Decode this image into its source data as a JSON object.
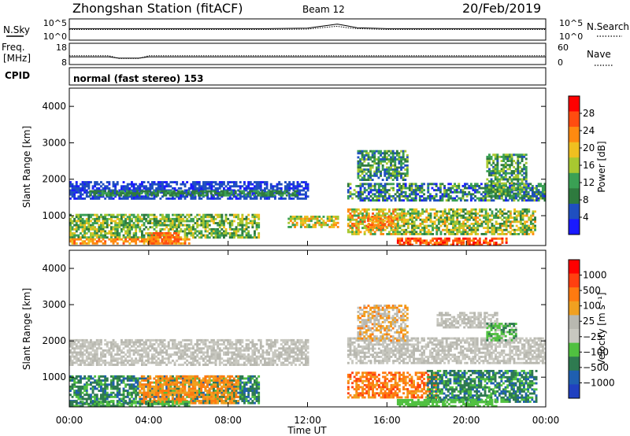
{
  "header": {
    "station": "Zhongshan Station (fitACF)",
    "beam": "Beam 12",
    "date": "20/Feb/2019"
  },
  "noise_panel": {
    "left_label": "N.Sky",
    "right_label": "N.Search",
    "ticks_left": [
      "10^5",
      "10^0"
    ],
    "ticks_right": [
      "10^5",
      "10^0"
    ]
  },
  "freq_panel": {
    "left_label_1": "Freq.",
    "left_label_2": "[MHz]",
    "right_label": "Nave",
    "ticks_left": [
      "18",
      "8"
    ],
    "ticks_right": [
      "60",
      "0"
    ]
  },
  "cpid_panel": {
    "label": "CPID",
    "text": "normal (fast stereo) 153"
  },
  "x_axis": {
    "label": "Time UT",
    "ticks": [
      "00:00",
      "04:00",
      "08:00",
      "12:00",
      "16:00",
      "20:00",
      "00:00"
    ]
  },
  "colors": {
    "power": [
      "#1a1aff",
      "#1f4fc0",
      "#2e7a3e",
      "#3aa054",
      "#a8c830",
      "#f0c020",
      "#ff8a10",
      "#ff4c10",
      "#ff0000"
    ],
    "velocity": [
      "#2040c0",
      "#1f5fb0",
      "#2e7a50",
      "#50c040",
      "#c8c8c0",
      "#b8b8b0",
      "#f0a020",
      "#ff7a10",
      "#ff4010",
      "#ff0000"
    ]
  },
  "chart_data": [
    {
      "type": "line",
      "name": "noise",
      "x_unit": "hours UT",
      "x": [
        0,
        2,
        4,
        6,
        8,
        10,
        12,
        12.5,
        13,
        13.5,
        14,
        14.5,
        16,
        18,
        20,
        22,
        24
      ],
      "series": [
        {
          "name": "N.Sky",
          "values": [
            0.55,
            0.55,
            0.55,
            0.55,
            0.55,
            0.55,
            0.58,
            0.65,
            0.72,
            0.8,
            0.7,
            0.6,
            0.55,
            0.55,
            0.55,
            0.55,
            0.55
          ]
        },
        {
          "name": "N.Search",
          "values": [
            0.5,
            0.5,
            0.5,
            0.5,
            0.5,
            0.5,
            0.52,
            0.58,
            0.63,
            0.68,
            0.6,
            0.55,
            0.5,
            0.5,
            0.5,
            0.5,
            0.5
          ]
        }
      ],
      "ylim": [
        0,
        1
      ]
    },
    {
      "type": "line",
      "name": "frequency",
      "x_unit": "hours UT",
      "x": [
        0,
        2,
        2.5,
        3,
        3.5,
        4,
        6,
        12,
        18,
        24
      ],
      "series": [
        {
          "name": "Freq.",
          "values": [
            12,
            12,
            10.5,
            10.5,
            10.5,
            12,
            12,
            12,
            12,
            12
          ]
        },
        {
          "name": "Nave",
          "values": [
            20,
            20,
            16,
            16,
            16,
            20,
            20,
            20,
            20,
            20
          ]
        }
      ]
    },
    {
      "type": "heatmap",
      "name": "power",
      "ylabel": "Slant Range [km]",
      "colorbar_label": "Power [dB]",
      "colorbar_ticks": [
        "28",
        "24",
        "20",
        "16",
        "12",
        "8",
        "4"
      ],
      "colorbar_min": 0,
      "colorbar_max": 32,
      "yticks": [
        "4000",
        "3000",
        "2000",
        "1000"
      ],
      "ylim": [
        180,
        4500
      ],
      "xlim": [
        0,
        24
      ],
      "regions": [
        {
          "t0": 0.0,
          "t1": 12.0,
          "r0": 1450,
          "r1": 1950,
          "v0": 2,
          "v1": 7
        },
        {
          "t0": 1.0,
          "t1": 11.5,
          "r0": 1550,
          "r1": 1700,
          "v0": 8,
          "v1": 12
        },
        {
          "t0": 0.0,
          "t1": 9.5,
          "r0": 400,
          "r1": 1050,
          "v0": 8,
          "v1": 20
        },
        {
          "t0": 0.0,
          "t1": 6.0,
          "r0": 220,
          "r1": 380,
          "v0": 20,
          "v1": 26
        },
        {
          "t0": 4.0,
          "t1": 5.5,
          "r0": 250,
          "r1": 550,
          "v0": 22,
          "v1": 28
        },
        {
          "t0": 11.0,
          "t1": 13.5,
          "r0": 700,
          "r1": 1000,
          "v0": 12,
          "v1": 24
        },
        {
          "t0": 14.0,
          "t1": 16.5,
          "r0": 500,
          "r1": 1200,
          "v0": 12,
          "v1": 26
        },
        {
          "t0": 15.0,
          "t1": 16.5,
          "r0": 700,
          "r1": 1000,
          "v0": 20,
          "v1": 28
        },
        {
          "t0": 16.5,
          "t1": 22.0,
          "r0": 200,
          "r1": 400,
          "v0": 22,
          "v1": 30
        },
        {
          "t0": 14.0,
          "t1": 24.0,
          "r0": 1450,
          "r1": 1900,
          "v0": 2,
          "v1": 16
        },
        {
          "t0": 16.5,
          "t1": 23.5,
          "r0": 500,
          "r1": 1200,
          "v0": 8,
          "v1": 22
        },
        {
          "t0": 14.5,
          "t1": 17.0,
          "r0": 2000,
          "r1": 2800,
          "v0": 4,
          "v1": 16
        },
        {
          "t0": 21.0,
          "t1": 23.0,
          "r0": 1500,
          "r1": 2700,
          "v0": 6,
          "v1": 18
        }
      ]
    },
    {
      "type": "heatmap",
      "name": "velocity",
      "ylabel": "Slant Range [km]",
      "colorbar_label": "Velocity [m s⁻¹]",
      "colorbar_ticks": [
        "1000",
        "500",
        "100",
        "25",
        "−25",
        "−100",
        "−500",
        "−1000"
      ],
      "yticks": [
        "4000",
        "3000",
        "2000",
        "1000"
      ],
      "ylim": [
        180,
        4500
      ],
      "xlim": [
        0,
        24
      ],
      "regions": [
        {
          "t0": 0.0,
          "t1": 12.0,
          "r0": 1350,
          "r1": 2050,
          "v0": 4,
          "v1": 5
        },
        {
          "t0": 0.0,
          "t1": 9.5,
          "r0": 300,
          "r1": 1050,
          "v0": 1,
          "v1": 3
        },
        {
          "t0": 3.5,
          "t1": 8.5,
          "r0": 300,
          "r1": 1050,
          "v0": 6,
          "v1": 7
        },
        {
          "t0": 0.0,
          "t1": 6.0,
          "r0": 200,
          "r1": 350,
          "v0": 2,
          "v1": 3
        },
        {
          "t0": 14.0,
          "t1": 18.5,
          "r0": 450,
          "r1": 1150,
          "v0": 6,
          "v1": 8
        },
        {
          "t0": 18.0,
          "t1": 23.5,
          "r0": 300,
          "r1": 1200,
          "v0": 1,
          "v1": 3
        },
        {
          "t0": 14.0,
          "t1": 24.0,
          "r0": 1400,
          "r1": 2100,
          "v0": 4,
          "v1": 5
        },
        {
          "t0": 16.5,
          "t1": 21.5,
          "r0": 200,
          "r1": 400,
          "v0": 3,
          "v1": 3
        },
        {
          "t0": 14.5,
          "t1": 17.0,
          "r0": 2000,
          "r1": 3000,
          "v0": 4,
          "v1": 7
        },
        {
          "t0": 18.5,
          "t1": 21.5,
          "r0": 2400,
          "r1": 2800,
          "v0": 4,
          "v1": 5
        },
        {
          "t0": 21.0,
          "t1": 22.5,
          "r0": 2000,
          "r1": 2500,
          "v0": 2,
          "v1": 4
        }
      ]
    }
  ]
}
